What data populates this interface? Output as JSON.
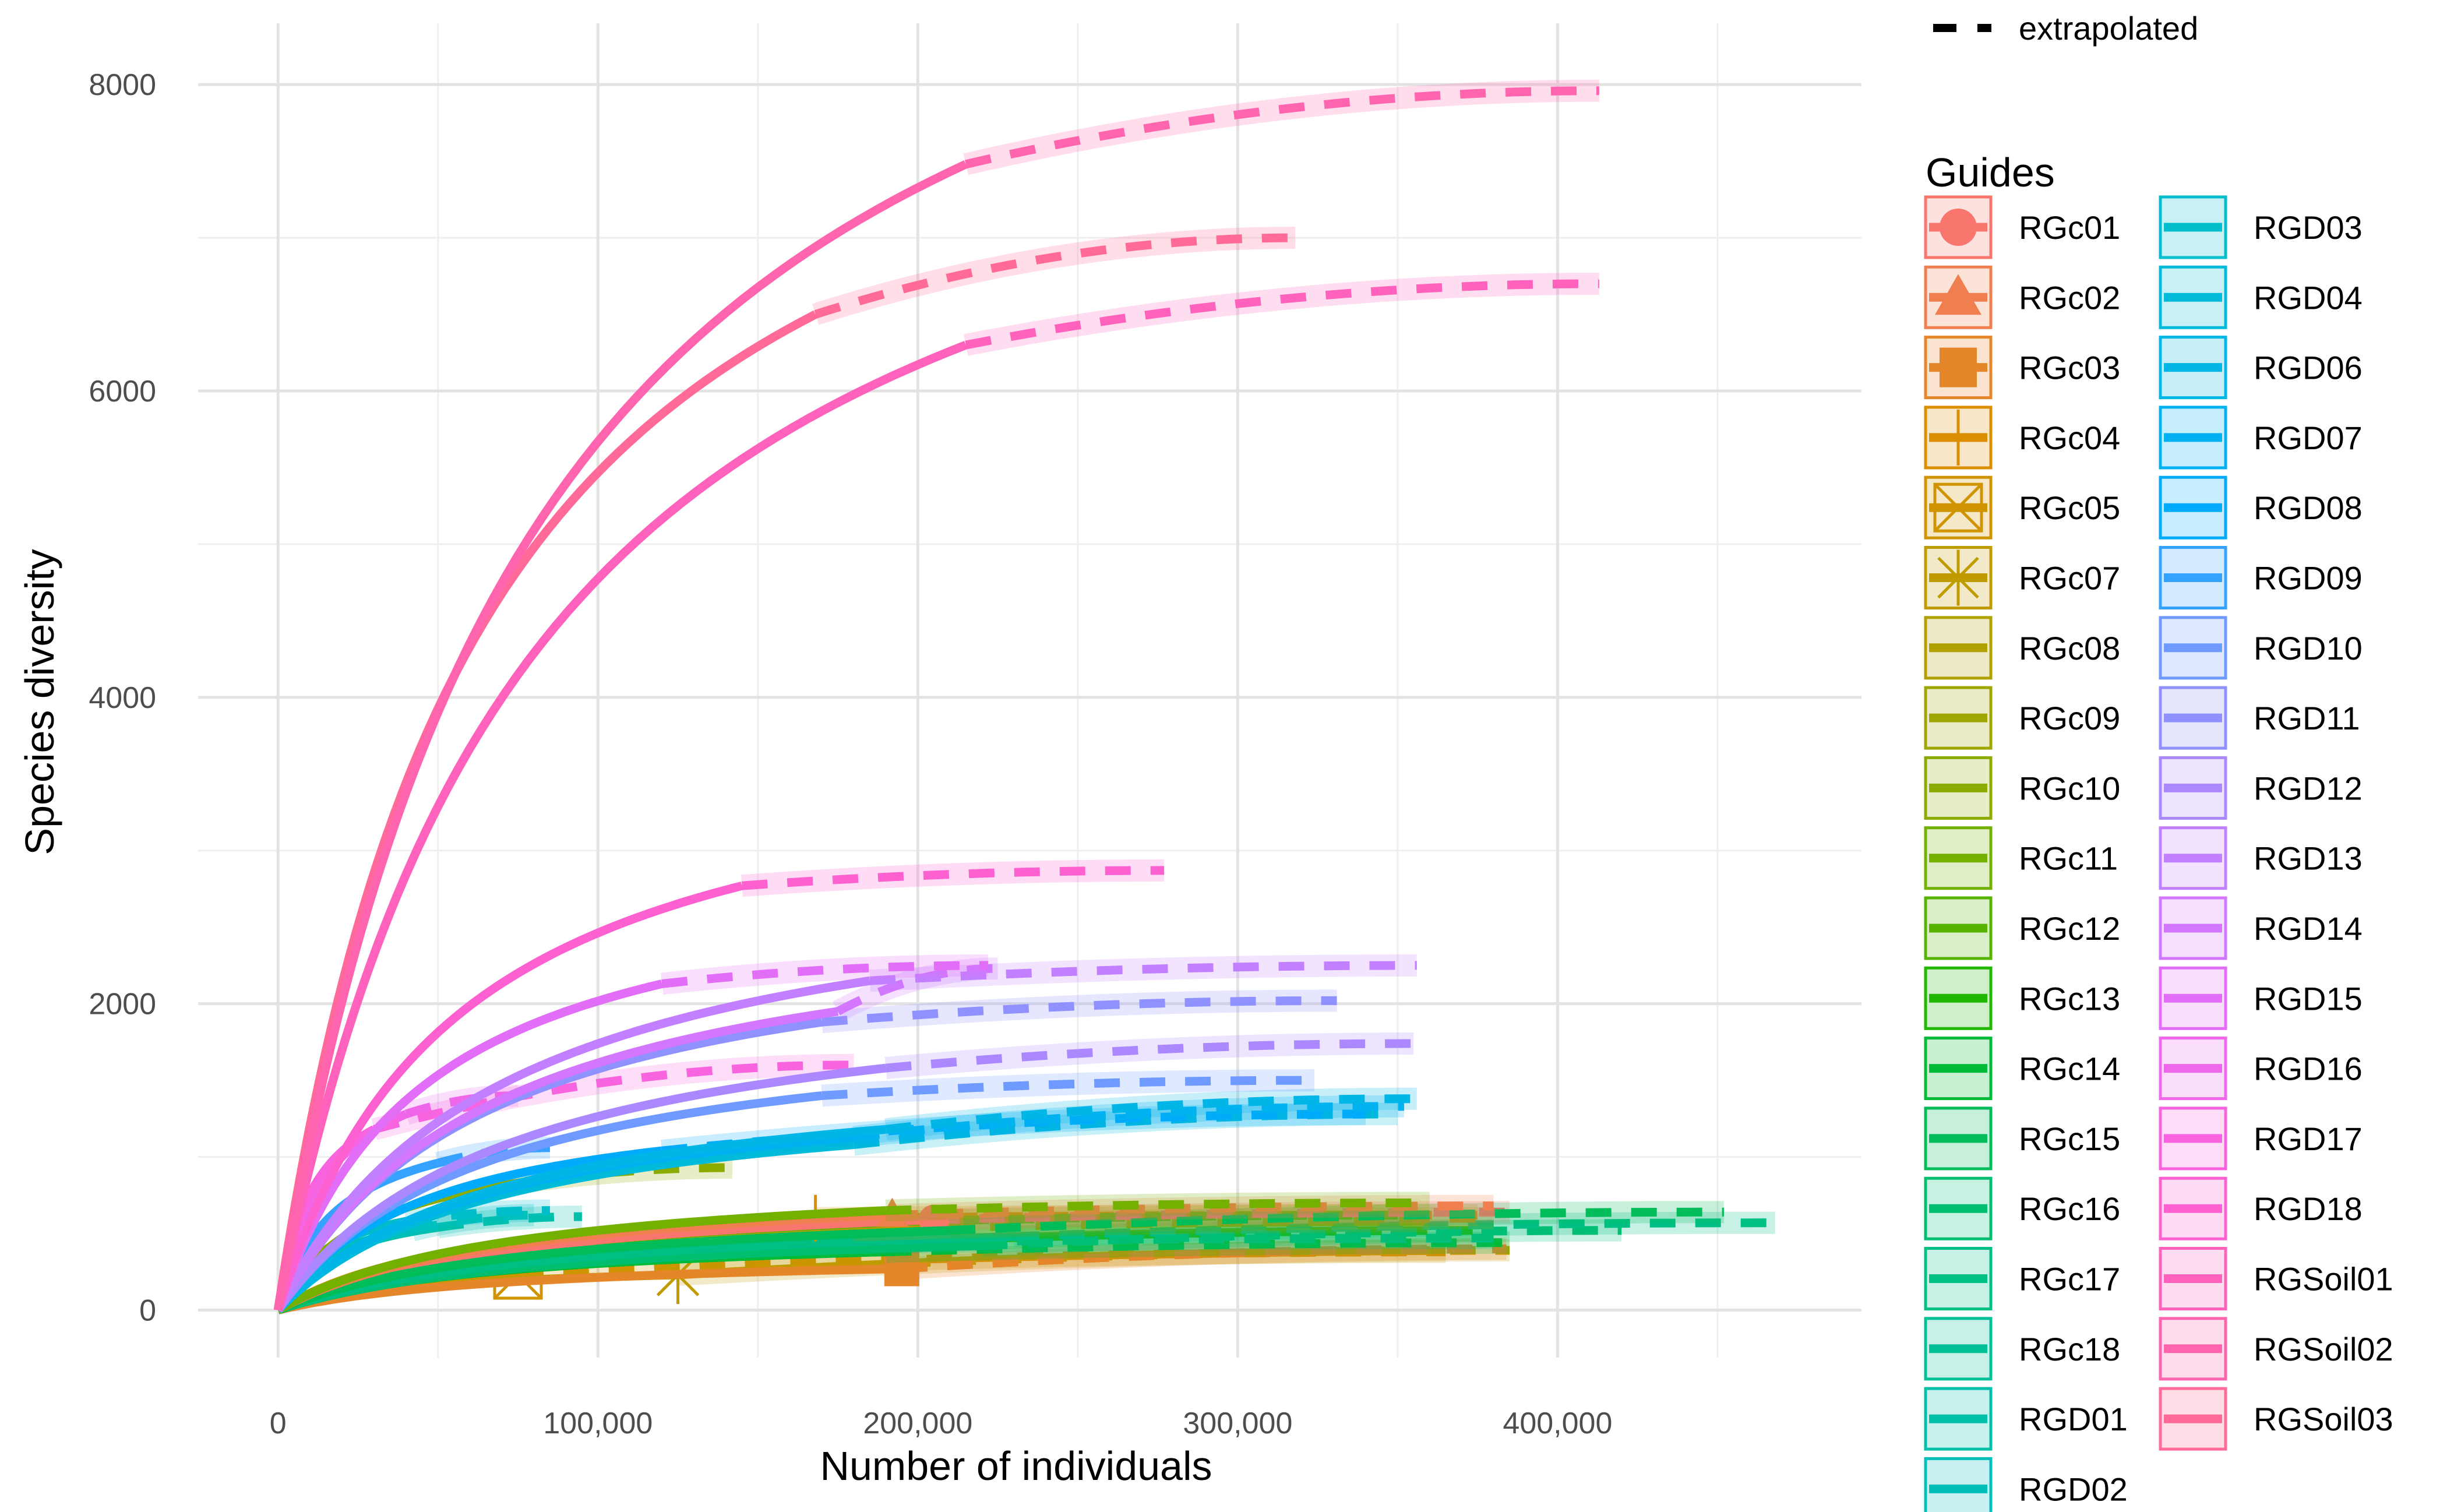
{
  "chart_data": {
    "type": "line",
    "xlabel": "Number of individuals",
    "ylabel": "Species diversity",
    "xlim": [
      -25000,
      495000
    ],
    "ylim": [
      -310,
      8400
    ],
    "x_ticks": [
      0,
      100000,
      200000,
      300000,
      400000
    ],
    "x_tick_labels": [
      "0",
      "100,000",
      "200,000",
      "300,000",
      "400,000"
    ],
    "y_ticks": [
      0,
      2000,
      4000,
      6000,
      8000
    ],
    "y_tick_labels": [
      "0",
      "2000",
      "4000",
      "6000",
      "8000"
    ],
    "grid": true,
    "legend_position": "right",
    "linetype_legend": {
      "entry": "extrapolated"
    },
    "legend_title": "Guides",
    "series": [
      {
        "name": "RGc01",
        "color": "#F8766D",
        "marker": "circle",
        "end_x": 205000,
        "end_y": 590,
        "extrap_x": 385000,
        "extrap_y": 640
      },
      {
        "name": "RGc02",
        "color": "#F07F4F",
        "marker": "triangle",
        "end_x": 192000,
        "end_y": 620,
        "extrap_x": 380000,
        "extrap_y": 680
      },
      {
        "name": "RGc03",
        "color": "#E6862A",
        "marker": "square-plus",
        "end_x": 195000,
        "end_y": 270,
        "extrap_x": 384000,
        "extrap_y": 400
      },
      {
        "name": "RGc04",
        "color": "#DB8E00",
        "marker": "plus",
        "end_x": 168000,
        "end_y": 600,
        "extrap_x": 375000,
        "extrap_y": 620
      },
      {
        "name": "RGc05",
        "color": "#CF9400",
        "marker": "square-x",
        "end_x": 75000,
        "end_y": 230,
        "extrap_x": 365000,
        "extrap_y": 380
      },
      {
        "name": "RGc07",
        "color": "#C09B00",
        "marker": "asterisk",
        "end_x": 125000,
        "end_y": 230,
        "extrap_x": 385000,
        "extrap_y": 390
      },
      {
        "name": "RGc08",
        "color": "#B0A100",
        "marker": "none",
        "end_x": 210000,
        "end_y": 560,
        "extrap_x": 380000,
        "extrap_y": 600
      },
      {
        "name": "RGc09",
        "color": "#9FA600",
        "marker": "none",
        "end_x": 180000,
        "end_y": 520,
        "extrap_x": 360000,
        "extrap_y": 580
      },
      {
        "name": "RGc10",
        "color": "#8CAB00",
        "marker": "none",
        "end_x": 75000,
        "end_y": 830,
        "extrap_x": 142000,
        "extrap_y": 930
      },
      {
        "name": "RGc11",
        "color": "#74B000",
        "marker": "none",
        "end_x": 190000,
        "end_y": 650,
        "extrap_x": 360000,
        "extrap_y": 700
      },
      {
        "name": "RGc12",
        "color": "#56B400",
        "marker": "none",
        "end_x": 200000,
        "end_y": 580,
        "extrap_x": 355000,
        "extrap_y": 620
      },
      {
        "name": "RGc13",
        "color": "#22B700",
        "marker": "none",
        "end_x": 195000,
        "end_y": 450,
        "extrap_x": 380000,
        "extrap_y": 520
      },
      {
        "name": "RGc14",
        "color": "#00BA38",
        "marker": "none",
        "end_x": 190000,
        "end_y": 380,
        "extrap_x": 385000,
        "extrap_y": 440
      },
      {
        "name": "RGc15",
        "color": "#00BC59",
        "marker": "none",
        "end_x": 210000,
        "end_y": 520,
        "extrap_x": 452000,
        "extrap_y": 640
      },
      {
        "name": "RGc16",
        "color": "#00BE70",
        "marker": "none",
        "end_x": 220000,
        "end_y": 420,
        "extrap_x": 420000,
        "extrap_y": 520
      },
      {
        "name": "RGc17",
        "color": "#00BF85",
        "marker": "none",
        "end_x": 230000,
        "end_y": 480,
        "extrap_x": 468000,
        "extrap_y": 570
      },
      {
        "name": "RGc18",
        "color": "#00C098",
        "marker": "none",
        "end_x": 160000,
        "end_y": 430,
        "extrap_x": 380000,
        "extrap_y": 470
      },
      {
        "name": "RGD01",
        "color": "#00C0AA",
        "marker": "none",
        "end_x": 50000,
        "end_y": 540,
        "extrap_x": 95000,
        "extrap_y": 610
      },
      {
        "name": "RGD02",
        "color": "#00BFBB",
        "marker": "none",
        "end_x": 42000,
        "end_y": 520,
        "extrap_x": 80000,
        "extrap_y": 620
      },
      {
        "name": "RGD03",
        "color": "#00BDCB",
        "marker": "none",
        "end_x": 40000,
        "end_y": 580,
        "extrap_x": 85000,
        "extrap_y": 650
      },
      {
        "name": "RGD04",
        "color": "#00BAD9",
        "marker": "none",
        "end_x": 180000,
        "end_y": 1080,
        "extrap_x": 350000,
        "extrap_y": 1280
      },
      {
        "name": "RGD06",
        "color": "#00B6E6",
        "marker": "none",
        "end_x": 190000,
        "end_y": 1180,
        "extrap_x": 356000,
        "extrap_y": 1380
      },
      {
        "name": "RGD07",
        "color": "#00B1F2",
        "marker": "none",
        "end_x": 180000,
        "end_y": 1130,
        "extrap_x": 352000,
        "extrap_y": 1330
      },
      {
        "name": "RGD08",
        "color": "#00ABFC",
        "marker": "none",
        "end_x": 120000,
        "end_y": 1040,
        "extrap_x": 340000,
        "extrap_y": 1280
      },
      {
        "name": "RGD09",
        "color": "#35A2FF",
        "marker": "none",
        "end_x": 50000,
        "end_y": 960,
        "extrap_x": 85000,
        "extrap_y": 1060
      },
      {
        "name": "RGD10",
        "color": "#6F9AFF",
        "marker": "none",
        "end_x": 170000,
        "end_y": 1400,
        "extrap_x": 324000,
        "extrap_y": 1500
      },
      {
        "name": "RGD11",
        "color": "#8F91FF",
        "marker": "none",
        "end_x": 170000,
        "end_y": 1880,
        "extrap_x": 331000,
        "extrap_y": 2020
      },
      {
        "name": "RGD12",
        "color": "#AC88FF",
        "marker": "none",
        "end_x": 190000,
        "end_y": 1580,
        "extrap_x": 355000,
        "extrap_y": 1740
      },
      {
        "name": "RGD13",
        "color": "#C27FFF",
        "marker": "none",
        "end_x": 185000,
        "end_y": 2150,
        "extrap_x": 356000,
        "extrap_y": 2250
      },
      {
        "name": "RGD14",
        "color": "#D377FF",
        "marker": "none",
        "end_x": 175000,
        "end_y": 1950,
        "extrap_x": 225000,
        "extrap_y": 2230
      },
      {
        "name": "RGD15",
        "color": "#E26EF7",
        "marker": "none",
        "end_x": 120000,
        "end_y": 2130,
        "extrap_x": 222000,
        "extrap_y": 2250
      },
      {
        "name": "RGD16",
        "color": "#EF67EB",
        "marker": "none",
        "end_x": 40000,
        "end_y": 1280,
        "extrap_x": 75000,
        "extrap_y": 1400
      },
      {
        "name": "RGD17",
        "color": "#F863DF",
        "marker": "none",
        "end_x": 30000,
        "end_y": 1180,
        "extrap_x": 180000,
        "extrap_y": 1600
      },
      {
        "name": "RGD18",
        "color": "#FD61D1",
        "marker": "none",
        "end_x": 145000,
        "end_y": 2770,
        "extrap_x": 277000,
        "extrap_y": 2870
      },
      {
        "name": "RGSoil01",
        "color": "#FF62BC",
        "marker": "none",
        "end_x": 215000,
        "end_y": 6300,
        "extrap_x": 413000,
        "extrap_y": 6700
      },
      {
        "name": "RGSoil02",
        "color": "#FF65AE",
        "marker": "none",
        "end_x": 215000,
        "end_y": 7480,
        "extrap_x": 413000,
        "extrap_y": 7960
      },
      {
        "name": "RGSoil03",
        "color": "#FF6A98",
        "marker": "none",
        "end_x": 168000,
        "end_y": 6500,
        "extrap_x": 318000,
        "extrap_y": 7000
      }
    ]
  }
}
